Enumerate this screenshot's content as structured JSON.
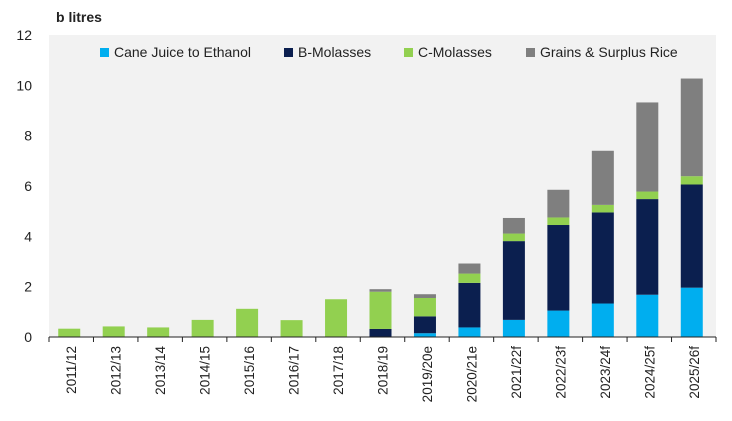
{
  "chart_data": {
    "type": "bar",
    "stacked": true,
    "unit_label": "b litres",
    "title": "",
    "xlabel": "",
    "ylabel": "",
    "ylim": [
      0,
      12
    ],
    "yticks": [
      0,
      2,
      4,
      6,
      8,
      10,
      12
    ],
    "grid": false,
    "legend_position": "top",
    "categories": [
      "2011/12",
      "2012/13",
      "2013/14",
      "2014/15",
      "2015/16",
      "2016/17",
      "2017/18",
      "2018/19",
      "2019/20e",
      "2020/21e",
      "2021/22f",
      "2022/23f",
      "2023/24f",
      "2024/25f",
      "2025/26f"
    ],
    "series": [
      {
        "name": "Cane Juice to Ethanol",
        "color": "#00aeef",
        "values": [
          0,
          0,
          0,
          0,
          0,
          0,
          0,
          0,
          0.15,
          0.38,
          0.68,
          1.05,
          1.33,
          1.68,
          1.96
        ]
      },
      {
        "name": "B-Molasses",
        "color": "#0b1f4f",
        "values": [
          0,
          0,
          0,
          0,
          0,
          0,
          0,
          0.32,
          0.67,
          1.77,
          3.13,
          3.4,
          3.62,
          3.8,
          4.1
        ]
      },
      {
        "name": "C-Molasses",
        "color": "#92d050",
        "values": [
          0.33,
          0.42,
          0.38,
          0.68,
          1.12,
          0.67,
          1.5,
          1.48,
          0.73,
          0.37,
          0.3,
          0.3,
          0.3,
          0.3,
          0.33
        ]
      },
      {
        "name": "Grains & Surplus Rice",
        "color": "#7f7f7f",
        "values": [
          0,
          0,
          0,
          0,
          0,
          0,
          0,
          0.1,
          0.15,
          0.4,
          0.62,
          1.1,
          2.15,
          3.54,
          3.88
        ]
      }
    ]
  }
}
